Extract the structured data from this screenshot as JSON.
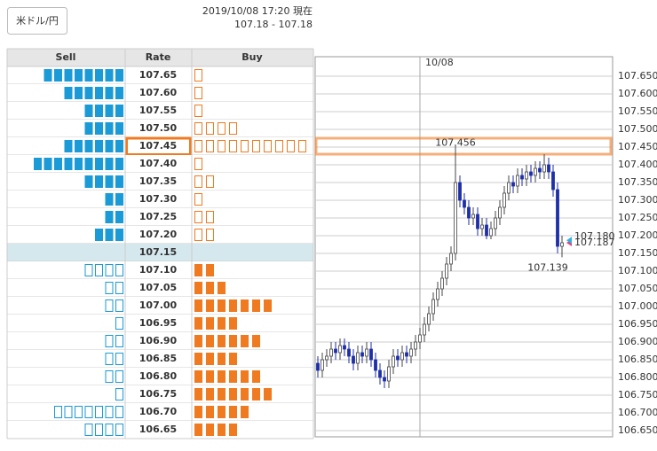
{
  "header": {
    "pair": "米ドル/円",
    "timestamp": "2019/10/08 17:20 現在",
    "quote": "107.18 - 107.18"
  },
  "order_book": {
    "columns": [
      "Sell",
      "Rate",
      "Buy"
    ],
    "sell_color": "#1a9ad6",
    "buy_color": "#f07a20",
    "rows": [
      {
        "rate": "107.65",
        "sell": 8,
        "buy": 1
      },
      {
        "rate": "107.60",
        "sell": 6,
        "buy": 1
      },
      {
        "rate": "107.55",
        "sell": 4,
        "buy": 1
      },
      {
        "rate": "107.50",
        "sell": 4,
        "buy": 4
      },
      {
        "rate": "107.45",
        "sell": 6,
        "buy": 10,
        "highlight": true
      },
      {
        "rate": "107.40",
        "sell": 9,
        "buy": 1
      },
      {
        "rate": "107.35",
        "sell": 4,
        "buy": 2
      },
      {
        "rate": "107.30",
        "sell": 2,
        "buy": 1
      },
      {
        "rate": "107.25",
        "sell": 2,
        "buy": 2
      },
      {
        "rate": "107.20",
        "sell": 3,
        "buy": 2
      },
      {
        "rate": "107.15",
        "sell": 0,
        "buy": 0,
        "current": true
      },
      {
        "rate": "107.10",
        "sell": 4,
        "buy": 2
      },
      {
        "rate": "107.05",
        "sell": 2,
        "buy": 3
      },
      {
        "rate": "107.00",
        "sell": 2,
        "buy": 7
      },
      {
        "rate": "106.95",
        "sell": 1,
        "buy": 4
      },
      {
        "rate": "106.90",
        "sell": 2,
        "buy": 6
      },
      {
        "rate": "106.85",
        "sell": 2,
        "buy": 4
      },
      {
        "rate": "106.80",
        "sell": 2,
        "buy": 6
      },
      {
        "rate": "106.75",
        "sell": 1,
        "buy": 7
      },
      {
        "rate": "106.70",
        "sell": 7,
        "buy": 5
      },
      {
        "rate": "106.65",
        "sell": 4,
        "buy": 4
      }
    ]
  },
  "chart_data": {
    "type": "candlestick",
    "up_color": "#ffffff",
    "down_color": "#1e2fa8",
    "categories": [
      null,
      null,
      null,
      null,
      null,
      null,
      null,
      null,
      null,
      null,
      null,
      null,
      null,
      null,
      null,
      null,
      null,
      null,
      null,
      null,
      null,
      null,
      null,
      "10/08",
      null,
      null,
      null,
      null,
      null,
      null,
      null,
      null,
      null,
      null,
      null,
      null,
      null,
      null,
      null,
      null,
      null,
      null,
      null,
      null,
      null,
      null,
      null,
      null,
      null,
      null,
      null,
      null,
      null,
      null,
      null,
      null
    ],
    "open": [
      106.84,
      106.82,
      106.85,
      106.86,
      106.88,
      106.87,
      106.89,
      106.88,
      106.86,
      106.84,
      106.87,
      106.86,
      106.88,
      106.85,
      106.82,
      106.8,
      106.79,
      106.83,
      106.86,
      106.85,
      106.87,
      106.86,
      106.88,
      106.9,
      106.92,
      106.95,
      106.98,
      107.02,
      107.05,
      107.08,
      107.12,
      107.15,
      107.35,
      107.3,
      107.28,
      107.25,
      107.26,
      107.22,
      107.23,
      107.2,
      107.22,
      107.25,
      107.28,
      107.32,
      107.35,
      107.34,
      107.37,
      107.36,
      107.38,
      107.37,
      107.39,
      107.38,
      107.4,
      107.38,
      107.33,
      107.17
    ],
    "high": [
      106.86,
      106.87,
      106.88,
      106.9,
      106.9,
      106.91,
      106.91,
      106.9,
      106.88,
      106.89,
      106.89,
      106.9,
      106.9,
      106.87,
      106.84,
      106.82,
      106.85,
      106.88,
      106.88,
      106.89,
      106.89,
      106.9,
      106.92,
      106.94,
      106.97,
      107.0,
      107.04,
      107.07,
      107.1,
      107.14,
      107.17,
      107.456,
      107.37,
      107.32,
      107.3,
      107.28,
      107.28,
      107.25,
      107.25,
      107.24,
      107.27,
      107.3,
      107.34,
      107.37,
      107.37,
      107.39,
      107.39,
      107.4,
      107.4,
      107.41,
      107.41,
      107.43,
      107.42,
      107.4,
      107.35,
      107.2
    ],
    "low": [
      106.8,
      106.8,
      106.83,
      106.84,
      106.85,
      106.85,
      106.86,
      106.84,
      106.82,
      106.82,
      106.84,
      106.84,
      106.83,
      106.8,
      106.78,
      106.77,
      106.77,
      106.81,
      106.83,
      106.83,
      106.84,
      106.84,
      106.86,
      106.88,
      106.9,
      106.93,
      106.96,
      107.0,
      107.03,
      107.06,
      107.1,
      107.13,
      107.28,
      107.26,
      107.23,
      107.23,
      107.2,
      107.2,
      107.19,
      107.19,
      107.2,
      107.23,
      107.26,
      107.3,
      107.32,
      107.32,
      107.34,
      107.34,
      107.35,
      107.35,
      107.36,
      107.36,
      107.36,
      107.31,
      107.15,
      107.139
    ],
    "close": [
      106.82,
      106.85,
      106.86,
      106.88,
      106.87,
      106.89,
      106.88,
      106.86,
      106.84,
      106.87,
      106.86,
      106.88,
      106.85,
      106.82,
      106.8,
      106.79,
      106.83,
      106.86,
      106.85,
      106.87,
      106.86,
      106.88,
      106.9,
      106.92,
      106.95,
      106.98,
      107.02,
      107.05,
      107.08,
      107.12,
      107.15,
      107.35,
      107.3,
      107.28,
      107.25,
      107.26,
      107.22,
      107.23,
      107.2,
      107.22,
      107.25,
      107.28,
      107.32,
      107.35,
      107.34,
      107.37,
      107.36,
      107.38,
      107.37,
      107.39,
      107.38,
      107.4,
      107.38,
      107.33,
      107.17,
      107.18
    ],
    "ylim": [
      106.6325,
      107.705
    ],
    "yticks": [
      {
        "value": 107.65,
        "label": "107.650"
      },
      {
        "value": 107.6,
        "label": "107.600"
      },
      {
        "value": 107.55,
        "label": "107.550"
      },
      {
        "value": 107.5,
        "label": "107.500"
      },
      {
        "value": 107.45,
        "label": "107.450"
      },
      {
        "value": 107.4,
        "label": "107.400"
      },
      {
        "value": 107.35,
        "label": "107.350"
      },
      {
        "value": 107.3,
        "label": "107.300"
      },
      {
        "value": 107.25,
        "label": "107.250"
      },
      {
        "value": 107.2,
        "label": "107.200"
      },
      {
        "value": 107.15,
        "label": "107.150"
      },
      {
        "value": 107.1,
        "label": "107.100"
      },
      {
        "value": 107.05,
        "label": "107.050"
      },
      {
        "value": 107,
        "label": "107.000"
      },
      {
        "value": 106.95,
        "label": "106.950"
      },
      {
        "value": 106.9,
        "label": "106.900"
      },
      {
        "value": 106.85,
        "label": "106.850"
      },
      {
        "value": 106.8,
        "label": "106.800"
      },
      {
        "value": 106.75,
        "label": "106.750"
      },
      {
        "value": 106.7,
        "label": "106.700"
      },
      {
        "value": 106.65,
        "label": "106.650"
      }
    ],
    "grid": true,
    "high_label": {
      "price": 107.456,
      "color": "#f29a60"
    },
    "low_label": {
      "price": 107.139,
      "color": "#3cb43c"
    },
    "price_markers": [
      {
        "price": {
          "value": 107.18,
          "label": "107.180"
        },
        "color": "#e8407a"
      },
      {
        "price": 107.187,
        "color": "#30b0e0"
      }
    ]
  }
}
